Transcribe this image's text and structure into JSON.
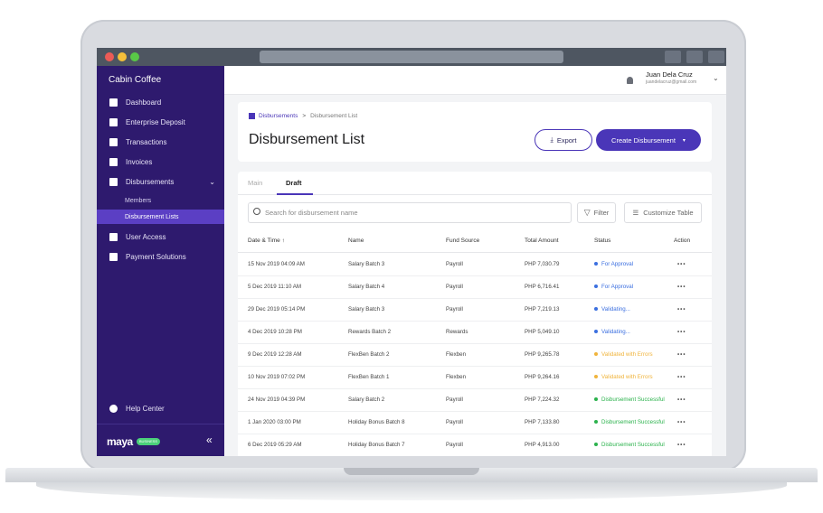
{
  "app": {
    "org_name": "Cabin Coffee"
  },
  "sidebar": {
    "items": [
      {
        "label": "Dashboard",
        "icon": "grid-icon"
      },
      {
        "label": "Enterprise Deposit",
        "icon": "wallet-icon"
      },
      {
        "label": "Transactions",
        "icon": "transfer-icon"
      },
      {
        "label": "Invoices",
        "icon": "invoice-icon"
      },
      {
        "label": "Disbursements",
        "icon": "disbursement-icon",
        "expanded": true
      },
      {
        "label": "User Access",
        "icon": "users-icon"
      },
      {
        "label": "Payment Solutions",
        "icon": "payment-icon"
      }
    ],
    "subitems": [
      {
        "label": "Members"
      },
      {
        "label": "Disbursement Lists",
        "active": true
      }
    ],
    "help": "Help Center",
    "brand": "maya",
    "brand_badge": "BUSINESS",
    "collapse": "«",
    "chevron": "⌄"
  },
  "user": {
    "name": "Juan Dela Cruz",
    "email": "juandelacruz@gmail.com",
    "chevron": "⌄"
  },
  "breadcrumb": {
    "parent": "Disbursements",
    "separator": ">",
    "current": "Disbursement List"
  },
  "page": {
    "title": "Disbursement List"
  },
  "buttons": {
    "export": "Export",
    "export_icon": "⤓",
    "create": "Create Disbursement",
    "create_caret": "▾"
  },
  "tabs": {
    "main": "Main",
    "draft": "Draft"
  },
  "search": {
    "placeholder": "Search for disbursement name"
  },
  "toolbar": {
    "filter": "Filter",
    "customize": "Customize Table",
    "filter_icon": "▽",
    "customize_icon": "☰"
  },
  "table": {
    "headers": {
      "date": "Date & Time  ↑",
      "name": "Name",
      "fund": "Fund Source",
      "amount": "Total Amount",
      "status": "Status",
      "action": "Action"
    },
    "rows": [
      {
        "date": "15 Nov 2019 04:09 AM",
        "name": "Salary Batch 3",
        "fund": "Payroll",
        "amount": "PHP 7,030.79",
        "status": "For Approval",
        "action": "•••"
      },
      {
        "date": "5 Dec 2019 11:10 AM",
        "name": "Salary Batch 4",
        "fund": "Payroll",
        "amount": "PHP 6,716.41",
        "status": "For Approval",
        "action": "•••"
      },
      {
        "date": "29 Dec 2019 05:14 PM",
        "name": "Salary Batch 3",
        "fund": "Payroll",
        "amount": "PHP 7,219.13",
        "status": "Validating...",
        "action": "•••"
      },
      {
        "date": "4 Dec 2019 10:28 PM",
        "name": "Rewards Batch 2",
        "fund": "Rewards",
        "amount": "PHP 5,049.10",
        "status": "Validating...",
        "action": "•••"
      },
      {
        "date": "9 Dec 2019 12:28 AM",
        "name": "FlexBen Batch 2",
        "fund": "Flexben",
        "amount": "PHP 9,265.78",
        "status": "Validated with Errors",
        "action": "•••"
      },
      {
        "date": "10 Nov 2019 07:02 PM",
        "name": "FlexBen Batch 1",
        "fund": "Flexben",
        "amount": "PHP 9,264.16",
        "status": "Validated with Errors",
        "action": "•••"
      },
      {
        "date": "24 Nov 2019 04:39 PM",
        "name": "Salary Batch 2",
        "fund": "Payroll",
        "amount": "PHP 7,224.32",
        "status": "Disbursement Successful",
        "action": "•••"
      },
      {
        "date": "1 Jan 2020 03:00 PM",
        "name": "Holiday Bonus Batch 8",
        "fund": "Payroll",
        "amount": "PHP 7,133.80",
        "status": "Disbursement Successful",
        "action": "•••"
      },
      {
        "date": "6 Dec 2019 05:29 AM",
        "name": "Holiday Bonus Batch 7",
        "fund": "Payroll",
        "amount": "PHP 4,913.00",
        "status": "Disbursement Successful",
        "action": "•••"
      }
    ]
  },
  "colors": {
    "brand_purple": "#4a36b8",
    "sidebar_bg": "#2e1a6e",
    "status_for_approval": "#3b6fe0",
    "status_validating": "#3b6fe0",
    "status_errors": "#f0b43c",
    "status_success": "#2bb24c"
  }
}
